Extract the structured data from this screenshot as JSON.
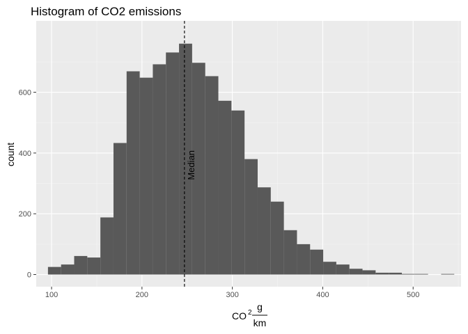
{
  "chart_data": {
    "type": "bar",
    "title": "Histogram of CO2 emissions",
    "ylabel": "count",
    "xlabel": {
      "base": "CO",
      "superscript": "2",
      "fraction_numerator": "g",
      "fraction_denominator": "km"
    },
    "xlim": [
      83,
      553
    ],
    "ylim": [
      -40,
      835
    ],
    "x_ticks": [
      100,
      200,
      300,
      400,
      500
    ],
    "y_ticks": [
      0,
      200,
      400,
      600
    ],
    "grid": true,
    "legend": "none",
    "colors": {
      "bar": "#595959",
      "panel": "#ebebeb",
      "grid_major": "#ffffff",
      "grid_minor": "#f5f5f5",
      "median_line": "#000000"
    },
    "bins": [
      {
        "x0": 96,
        "x1": 110.5,
        "count": 25
      },
      {
        "x0": 110.5,
        "x1": 125,
        "count": 33
      },
      {
        "x0": 125,
        "x1": 139.5,
        "count": 61
      },
      {
        "x0": 139.5,
        "x1": 154,
        "count": 56
      },
      {
        "x0": 154,
        "x1": 168.5,
        "count": 188
      },
      {
        "x0": 168.5,
        "x1": 183,
        "count": 433
      },
      {
        "x0": 183,
        "x1": 197.5,
        "count": 669
      },
      {
        "x0": 197.5,
        "x1": 212,
        "count": 648
      },
      {
        "x0": 212,
        "x1": 226.5,
        "count": 692
      },
      {
        "x0": 226.5,
        "x1": 241,
        "count": 731
      },
      {
        "x0": 241,
        "x1": 255.5,
        "count": 760
      },
      {
        "x0": 255.5,
        "x1": 270,
        "count": 697
      },
      {
        "x0": 270,
        "x1": 284.5,
        "count": 653
      },
      {
        "x0": 284.5,
        "x1": 299,
        "count": 572
      },
      {
        "x0": 299,
        "x1": 313.5,
        "count": 540
      },
      {
        "x0": 313.5,
        "x1": 328,
        "count": 380
      },
      {
        "x0": 328,
        "x1": 342.5,
        "count": 287
      },
      {
        "x0": 342.5,
        "x1": 357,
        "count": 240
      },
      {
        "x0": 357,
        "x1": 371.5,
        "count": 146
      },
      {
        "x0": 371.5,
        "x1": 386,
        "count": 100
      },
      {
        "x0": 386,
        "x1": 400.5,
        "count": 82
      },
      {
        "x0": 400.5,
        "x1": 415,
        "count": 42
      },
      {
        "x0": 415,
        "x1": 429.5,
        "count": 33
      },
      {
        "x0": 429.5,
        "x1": 444,
        "count": 19
      },
      {
        "x0": 444,
        "x1": 458.5,
        "count": 14
      },
      {
        "x0": 458.5,
        "x1": 473,
        "count": 6
      },
      {
        "x0": 473,
        "x1": 487.5,
        "count": 6
      },
      {
        "x0": 487.5,
        "x1": 502,
        "count": 2
      },
      {
        "x0": 502,
        "x1": 516.5,
        "count": 2
      },
      {
        "x0": 516.5,
        "x1": 531,
        "count": 0
      },
      {
        "x0": 531,
        "x1": 545.5,
        "count": 2
      }
    ],
    "annotations": [
      {
        "type": "vline",
        "x": 247,
        "linetype": "dashed",
        "label": "Median"
      }
    ]
  }
}
